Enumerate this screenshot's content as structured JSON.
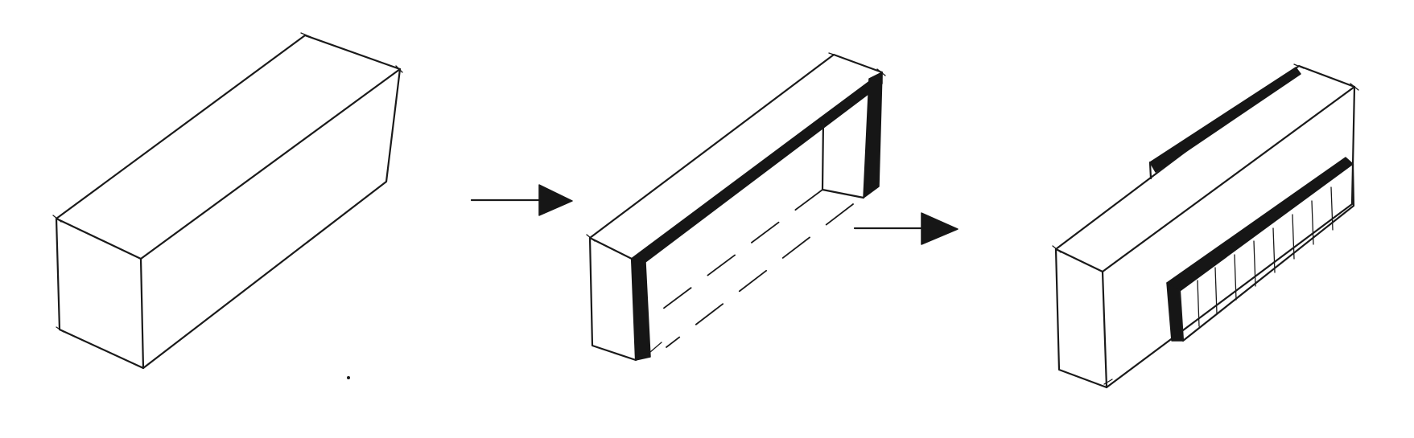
{
  "diagram": {
    "style": "hand-drawn pen sketch",
    "ink_color": "#161616",
    "background_color": "#ffffff",
    "steps": [
      {
        "id": "solid-block"
      },
      {
        "id": "hollowed-frame"
      },
      {
        "id": "block-with-recess-and-slot"
      }
    ],
    "arrows": [
      {
        "from": "solid-block",
        "to": "hollowed-frame"
      },
      {
        "from": "hollowed-frame",
        "to": "block-with-recess-and-slot"
      }
    ]
  }
}
